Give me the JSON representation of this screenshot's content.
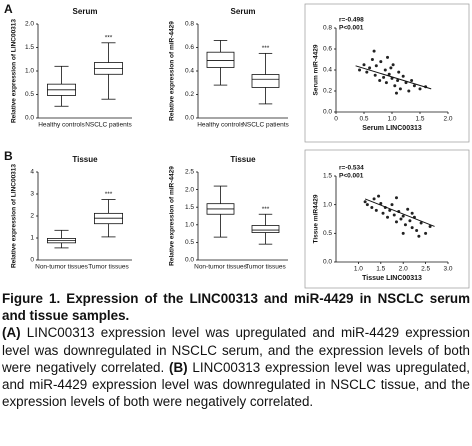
{
  "panel_labels": [
    "A",
    "B"
  ],
  "chart_data": [
    {
      "type": "box",
      "title": "Serum",
      "ylabel": "Relative expression of LINC00313",
      "categories": [
        "Healthy controls",
        "NSCLC patients"
      ],
      "min": [
        0.25,
        0.4
      ],
      "q1": [
        0.48,
        0.93
      ],
      "median": [
        0.6,
        1.05
      ],
      "q3": [
        0.72,
        1.18
      ],
      "max": [
        1.1,
        1.6
      ],
      "annotation": "***",
      "color": "#ffffff",
      "ylim": [
        0,
        2.0
      ],
      "yticks": [
        {
          "value": 0,
          "label": "0.0"
        },
        0.5,
        {
          "value": 1,
          "label": "1.0"
        },
        1.5,
        {
          "value": 2,
          "label": "2.0"
        }
      ]
    },
    {
      "type": "box",
      "title": "Serum",
      "ylabel": "Relative expression of miR-4429",
      "categories": [
        "Healthy controls",
        "NSCLC patients"
      ],
      "min": [
        0.28,
        0.12
      ],
      "q1": [
        0.43,
        0.26
      ],
      "median": [
        0.49,
        0.33
      ],
      "q3": [
        0.56,
        0.37
      ],
      "max": [
        0.66,
        0.55
      ],
      "annotation": "***",
      "color": "#ffffff",
      "ylim": [
        0,
        0.8
      ],
      "yticks": [
        {
          "value": 0,
          "label": "0.0"
        },
        0.2,
        0.4,
        0.6,
        0.8
      ]
    },
    {
      "type": "scatter",
      "xlabel": "Serum LINC00313",
      "ylabel": "Serum miR-4429",
      "annotations": [
        "r=-0.498",
        "P<0.001"
      ],
      "color": "#222222",
      "x": [
        0.42,
        0.5,
        0.55,
        0.6,
        0.65,
        0.7,
        0.72,
        0.78,
        0.8,
        0.85,
        0.88,
        0.9,
        0.95,
        1.0,
        1.02,
        1.05,
        1.1,
        1.12,
        1.15,
        1.2,
        1.25,
        1.3,
        1.35,
        1.4,
        1.5,
        1.6,
        0.68,
        0.92,
        1.08,
        0.98
      ],
      "y": [
        0.4,
        0.45,
        0.38,
        0.42,
        0.5,
        0.35,
        0.44,
        0.3,
        0.48,
        0.33,
        0.4,
        0.28,
        0.36,
        0.32,
        0.45,
        0.25,
        0.3,
        0.38,
        0.22,
        0.34,
        0.28,
        0.2,
        0.3,
        0.25,
        0.22,
        0.24,
        0.58,
        0.52,
        0.18,
        0.42
      ],
      "fit": {
        "x": [
          0.35,
          1.7
        ],
        "y": [
          0.44,
          0.22
        ]
      },
      "xlim": [
        0,
        2.0
      ],
      "xticks": [
        0,
        0.5,
        {
          "value": 1,
          "label": "1.0"
        },
        1.5,
        {
          "value": 2,
          "label": "2.0"
        }
      ],
      "ylim": [
        0,
        0.8
      ],
      "yticks": [
        {
          "value": 0,
          "label": "0.0"
        },
        0.2,
        0.4,
        0.6,
        0.8
      ]
    },
    {
      "type": "box",
      "title": "Tissue",
      "ylabel": "Relative expression of LINC00313",
      "categories": [
        "Non-tumor tissues",
        "Tumor tissues"
      ],
      "min": [
        0.55,
        1.05
      ],
      "q1": [
        0.78,
        1.65
      ],
      "median": [
        0.88,
        1.9
      ],
      "q3": [
        0.98,
        2.12
      ],
      "max": [
        1.35,
        2.75
      ],
      "annotation": "***",
      "color": "#ffffff",
      "ylim": [
        0,
        4
      ],
      "yticks": [
        0,
        1,
        2,
        3,
        4
      ]
    },
    {
      "type": "box",
      "title": "Tissue",
      "ylabel": "Relative expression of miR-4429",
      "categories": [
        "Non-tumor tissues",
        "Tumor tissues"
      ],
      "min": [
        0.65,
        0.45
      ],
      "q1": [
        1.3,
        0.78
      ],
      "median": [
        1.45,
        0.85
      ],
      "q3": [
        1.6,
        0.98
      ],
      "max": [
        2.1,
        1.3
      ],
      "annotation": "***",
      "color": "#ffffff",
      "ylim": [
        0,
        2.5
      ],
      "yticks": [
        {
          "value": 0,
          "label": "0.0"
        },
        0.5,
        {
          "value": 1,
          "label": "1.0"
        },
        1.5,
        {
          "value": 2,
          "label": "2.0"
        },
        2.5
      ]
    },
    {
      "type": "scatter",
      "xlabel": "Tissue LINC00313",
      "ylabel": "Tissue miR4429",
      "annotations": [
        "r=-0.534",
        "P<0.001"
      ],
      "color": "#222222",
      "x": [
        1.15,
        1.2,
        1.3,
        1.35,
        1.4,
        1.5,
        1.55,
        1.6,
        1.65,
        1.7,
        1.75,
        1.8,
        1.85,
        1.9,
        1.95,
        2.0,
        2.05,
        2.1,
        2.15,
        2.2,
        2.25,
        2.3,
        2.4,
        2.5,
        2.6,
        1.45,
        1.85,
        2.0,
        2.2,
        2.35
      ],
      "y": [
        1.05,
        1.0,
        0.95,
        1.1,
        0.9,
        1.02,
        0.85,
        0.95,
        0.78,
        0.9,
        1.0,
        0.82,
        0.7,
        0.88,
        0.75,
        0.8,
        0.65,
        0.92,
        0.72,
        0.6,
        0.78,
        0.55,
        0.68,
        0.5,
        0.62,
        1.15,
        1.12,
        0.5,
        0.85,
        0.45
      ],
      "fit": {
        "x": [
          1.15,
          2.7
        ],
        "y": [
          1.1,
          0.62
        ]
      },
      "xlim": [
        0.5,
        3.0
      ],
      "xticks": [
        {
          "value": 1,
          "label": "1.0"
        },
        1.5,
        {
          "value": 2,
          "label": "2.0"
        },
        2.5,
        {
          "value": 3,
          "label": "3.0"
        }
      ],
      "ylim": [
        0,
        1.5
      ],
      "yticks": [
        {
          "value": 0,
          "label": "0.0"
        },
        0.5,
        {
          "value": 1,
          "label": "1.0"
        },
        1.5
      ]
    }
  ],
  "caption": {
    "title": "Figure 1. Expression of the LINC00313 and miR-4429 in NSCLC serum and tissue samples.",
    "parts": [
      {
        "label": "(A)",
        "text": " LINC00313 expression level was upregulated and miR-4429 expression level was downregulated in NSCLC serum, and the expression levels of both were negatively correlated. "
      },
      {
        "label": "(B)",
        "text": " LINC00313 expression level was upregulated, and miR-4429 expression level was downregulated in NSCLC tissue, and the expression levels of both were negatively correlated."
      }
    ]
  }
}
